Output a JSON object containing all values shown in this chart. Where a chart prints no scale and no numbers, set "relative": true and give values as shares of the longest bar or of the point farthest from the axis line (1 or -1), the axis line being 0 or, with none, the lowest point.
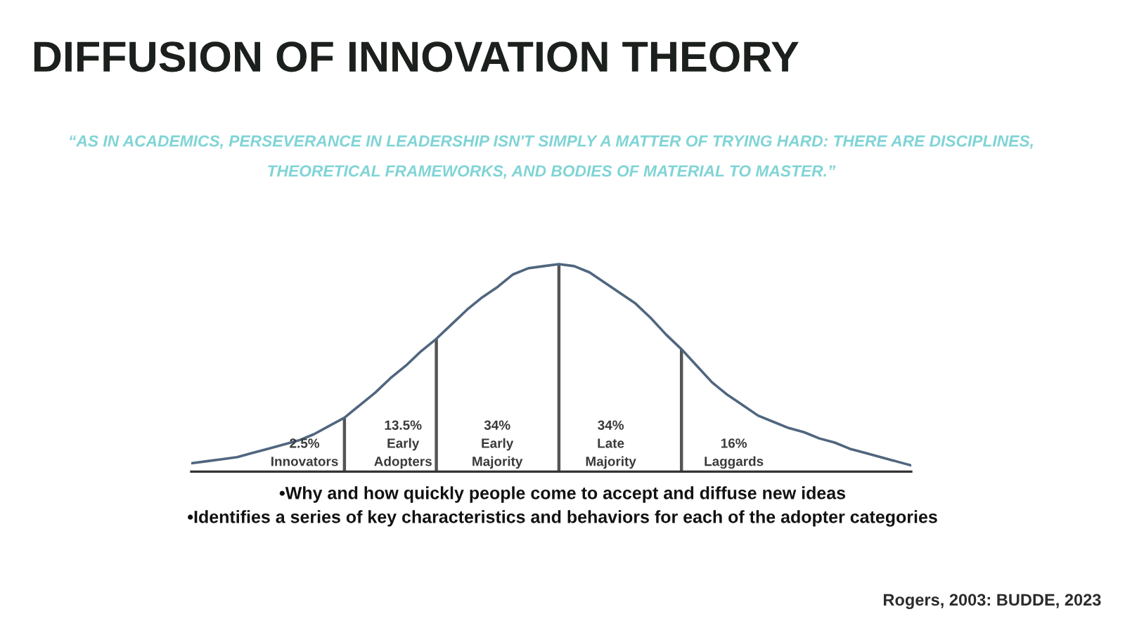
{
  "chart_data": {
    "type": "line",
    "title": "DIFFUSION OF INNOVATION THEORY",
    "subtitle": "“AS IN ACADEMICS, PERSEVERANCE IN LEADERSHIP ISN'T SIMPLY A MATTER OF TRYING HARD: THERE ARE DISCIPLINES,\nTHEORETICAL FRAMEWORKS, AND BODIES OF MATERIAL TO MASTER.”",
    "relative": true,
    "categories": [
      null,
      null,
      null,
      null,
      null,
      null,
      null,
      null,
      null,
      null,
      null,
      null,
      null,
      null,
      null,
      null,
      null,
      null,
      null,
      null,
      null,
      null,
      null,
      null,
      null,
      null,
      null,
      null,
      null,
      null,
      null,
      null,
      null,
      null,
      null,
      null,
      null,
      null,
      null,
      null,
      null,
      null,
      null,
      null,
      null,
      null,
      null,
      null
    ],
    "series": [
      {
        "color": "#50667f",
        "values": [
          0.04,
          0.05,
          0.06,
          0.07,
          0.09,
          0.11,
          0.13,
          0.15,
          0.18,
          0.22,
          0.26,
          0.32,
          0.38,
          0.45,
          0.51,
          0.58,
          0.64,
          0.71,
          0.78,
          0.84,
          0.89,
          0.95,
          0.98,
          0.99,
          1,
          0.99,
          0.96,
          0.91,
          0.86,
          0.81,
          0.74,
          0.66,
          0.59,
          0.51,
          0.43,
          0.37,
          0.32,
          0.27,
          0.24,
          0.21,
          0.19,
          0.16,
          0.14,
          0.11,
          0.09,
          0.07,
          0.05,
          0.03
        ]
      }
    ],
    "annotations": [
      "2.5%\nInnovators",
      "13.5%\nEarly\nAdopters",
      "34%\nEarly\nMajority",
      "34%\nLate\nMajority",
      "16%\nLaggards",
      "•Why and how quickly people come to accept and diffuse new ideas",
      "•Identifies a series of key characteristics and behaviors for each of the adopter categories",
      "Rogers, 2003: BUDDE, 2023"
    ]
  }
}
